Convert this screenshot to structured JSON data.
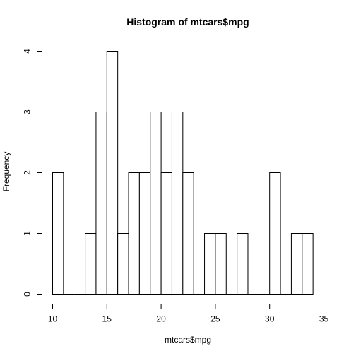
{
  "chart_data": {
    "type": "bar",
    "title": "Histogram of mtcars$mpg",
    "xlabel": "mtcars$mpg",
    "ylabel": "Frequency",
    "xlim": [
      10,
      35
    ],
    "ylim": [
      0,
      4
    ],
    "xticks": [
      10,
      15,
      20,
      25,
      30,
      35
    ],
    "yticks": [
      0,
      1,
      2,
      3,
      4
    ],
    "bins": [
      {
        "x0": 10,
        "x1": 11,
        "count": 2
      },
      {
        "x0": 11,
        "x1": 12,
        "count": 0
      },
      {
        "x0": 12,
        "x1": 13,
        "count": 0
      },
      {
        "x0": 13,
        "x1": 14,
        "count": 1
      },
      {
        "x0": 14,
        "x1": 15,
        "count": 3
      },
      {
        "x0": 15,
        "x1": 16,
        "count": 4
      },
      {
        "x0": 16,
        "x1": 17,
        "count": 1
      },
      {
        "x0": 17,
        "x1": 18,
        "count": 2
      },
      {
        "x0": 18,
        "x1": 19,
        "count": 2
      },
      {
        "x0": 19,
        "x1": 20,
        "count": 3
      },
      {
        "x0": 20,
        "x1": 21,
        "count": 2
      },
      {
        "x0": 21,
        "x1": 22,
        "count": 3
      },
      {
        "x0": 22,
        "x1": 23,
        "count": 2
      },
      {
        "x0": 23,
        "x1": 24,
        "count": 0
      },
      {
        "x0": 24,
        "x1": 25,
        "count": 1
      },
      {
        "x0": 25,
        "x1": 26,
        "count": 1
      },
      {
        "x0": 26,
        "x1": 27,
        "count": 0
      },
      {
        "x0": 27,
        "x1": 28,
        "count": 1
      },
      {
        "x0": 28,
        "x1": 29,
        "count": 0
      },
      {
        "x0": 29,
        "x1": 30,
        "count": 0
      },
      {
        "x0": 30,
        "x1": 31,
        "count": 2
      },
      {
        "x0": 31,
        "x1": 32,
        "count": 0
      },
      {
        "x0": 32,
        "x1": 33,
        "count": 1
      },
      {
        "x0": 33,
        "x1": 34,
        "count": 1
      }
    ],
    "bar_fill": "#ffffff",
    "bar_stroke": "#000000",
    "grid": false,
    "legend": "none"
  }
}
